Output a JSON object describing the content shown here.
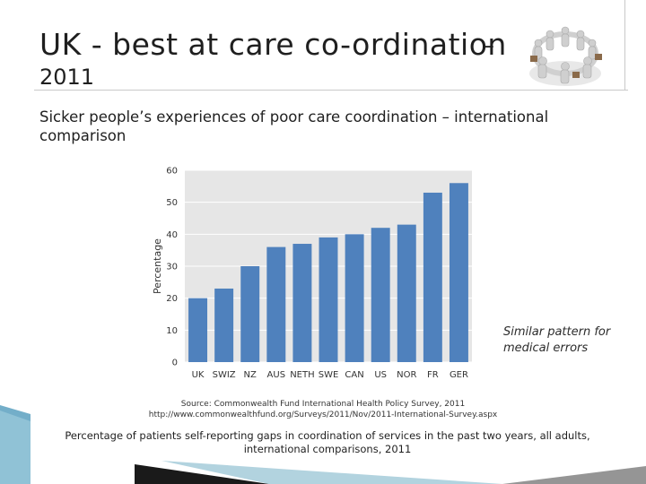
{
  "slide": {
    "title": "UK - best at care co-ordination",
    "title_dash": "–",
    "year": "2011",
    "subtitle": "Sicker people’s experiences of poor care coordination – international comparison",
    "side_note": "Similar pattern for medical errors",
    "source_line1": "Source: Commonwealth Fund International Health Policy Survey, 2011",
    "source_line2": "http://www.commonwealthfund.org/Surveys/2011/Nov/2011-International-Survey.aspx",
    "caption": "Percentage of patients self-reporting gaps in coordination of services in the past two years, all adults, international comparisons, 2011"
  },
  "colors": {
    "bar": "#4f81bd",
    "plot_bg": "#e6e6e6",
    "grid": "#ffffff",
    "accent_teal": "#7fb5c9"
  },
  "chart_data": {
    "type": "bar",
    "categories": [
      "UK",
      "SWIZ",
      "NZ",
      "AUS",
      "NETH",
      "SWE",
      "CAN",
      "US",
      "NOR",
      "FR",
      "GER"
    ],
    "values": [
      20,
      23,
      30,
      36,
      37,
      39,
      40,
      42,
      43,
      53,
      56
    ],
    "ylabel": "Percentage",
    "ylim": [
      0,
      60
    ],
    "yticks": [
      0,
      10,
      20,
      30,
      40,
      50,
      60
    ],
    "grid": true
  }
}
